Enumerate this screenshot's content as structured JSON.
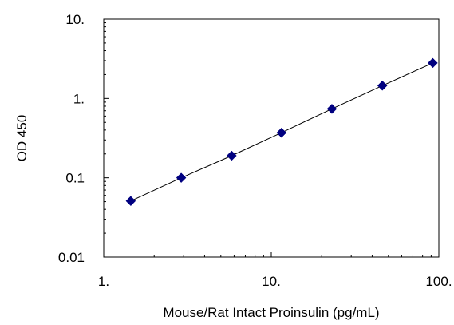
{
  "chart_data": {
    "type": "scatter",
    "title": "",
    "xlabel": "Mouse/Rat Intact Proinsulin (pg/mL)",
    "ylabel": "OD 450",
    "x_scale": "log",
    "y_scale": "log",
    "xlim": [
      1,
      100
    ],
    "ylim": [
      0.01,
      10
    ],
    "x_ticks": [
      {
        "value": 1,
        "label": "1."
      },
      {
        "value": 10,
        "label": "10."
      },
      {
        "value": 100,
        "label": "100."
      }
    ],
    "y_ticks": [
      {
        "value": 0.01,
        "label": "0.01"
      },
      {
        "value": 0.1,
        "label": "0.1"
      },
      {
        "value": 1,
        "label": "1."
      },
      {
        "value": 10,
        "label": "10."
      }
    ],
    "grid": false,
    "legend": "none",
    "series": [
      {
        "marker": "diamond",
        "color": "#000080",
        "line_color": "#000000",
        "x": [
          1.45,
          2.9,
          5.8,
          11.5,
          23,
          46,
          92
        ],
        "y": [
          0.051,
          0.1,
          0.19,
          0.37,
          0.74,
          1.45,
          2.8
        ]
      }
    ]
  }
}
